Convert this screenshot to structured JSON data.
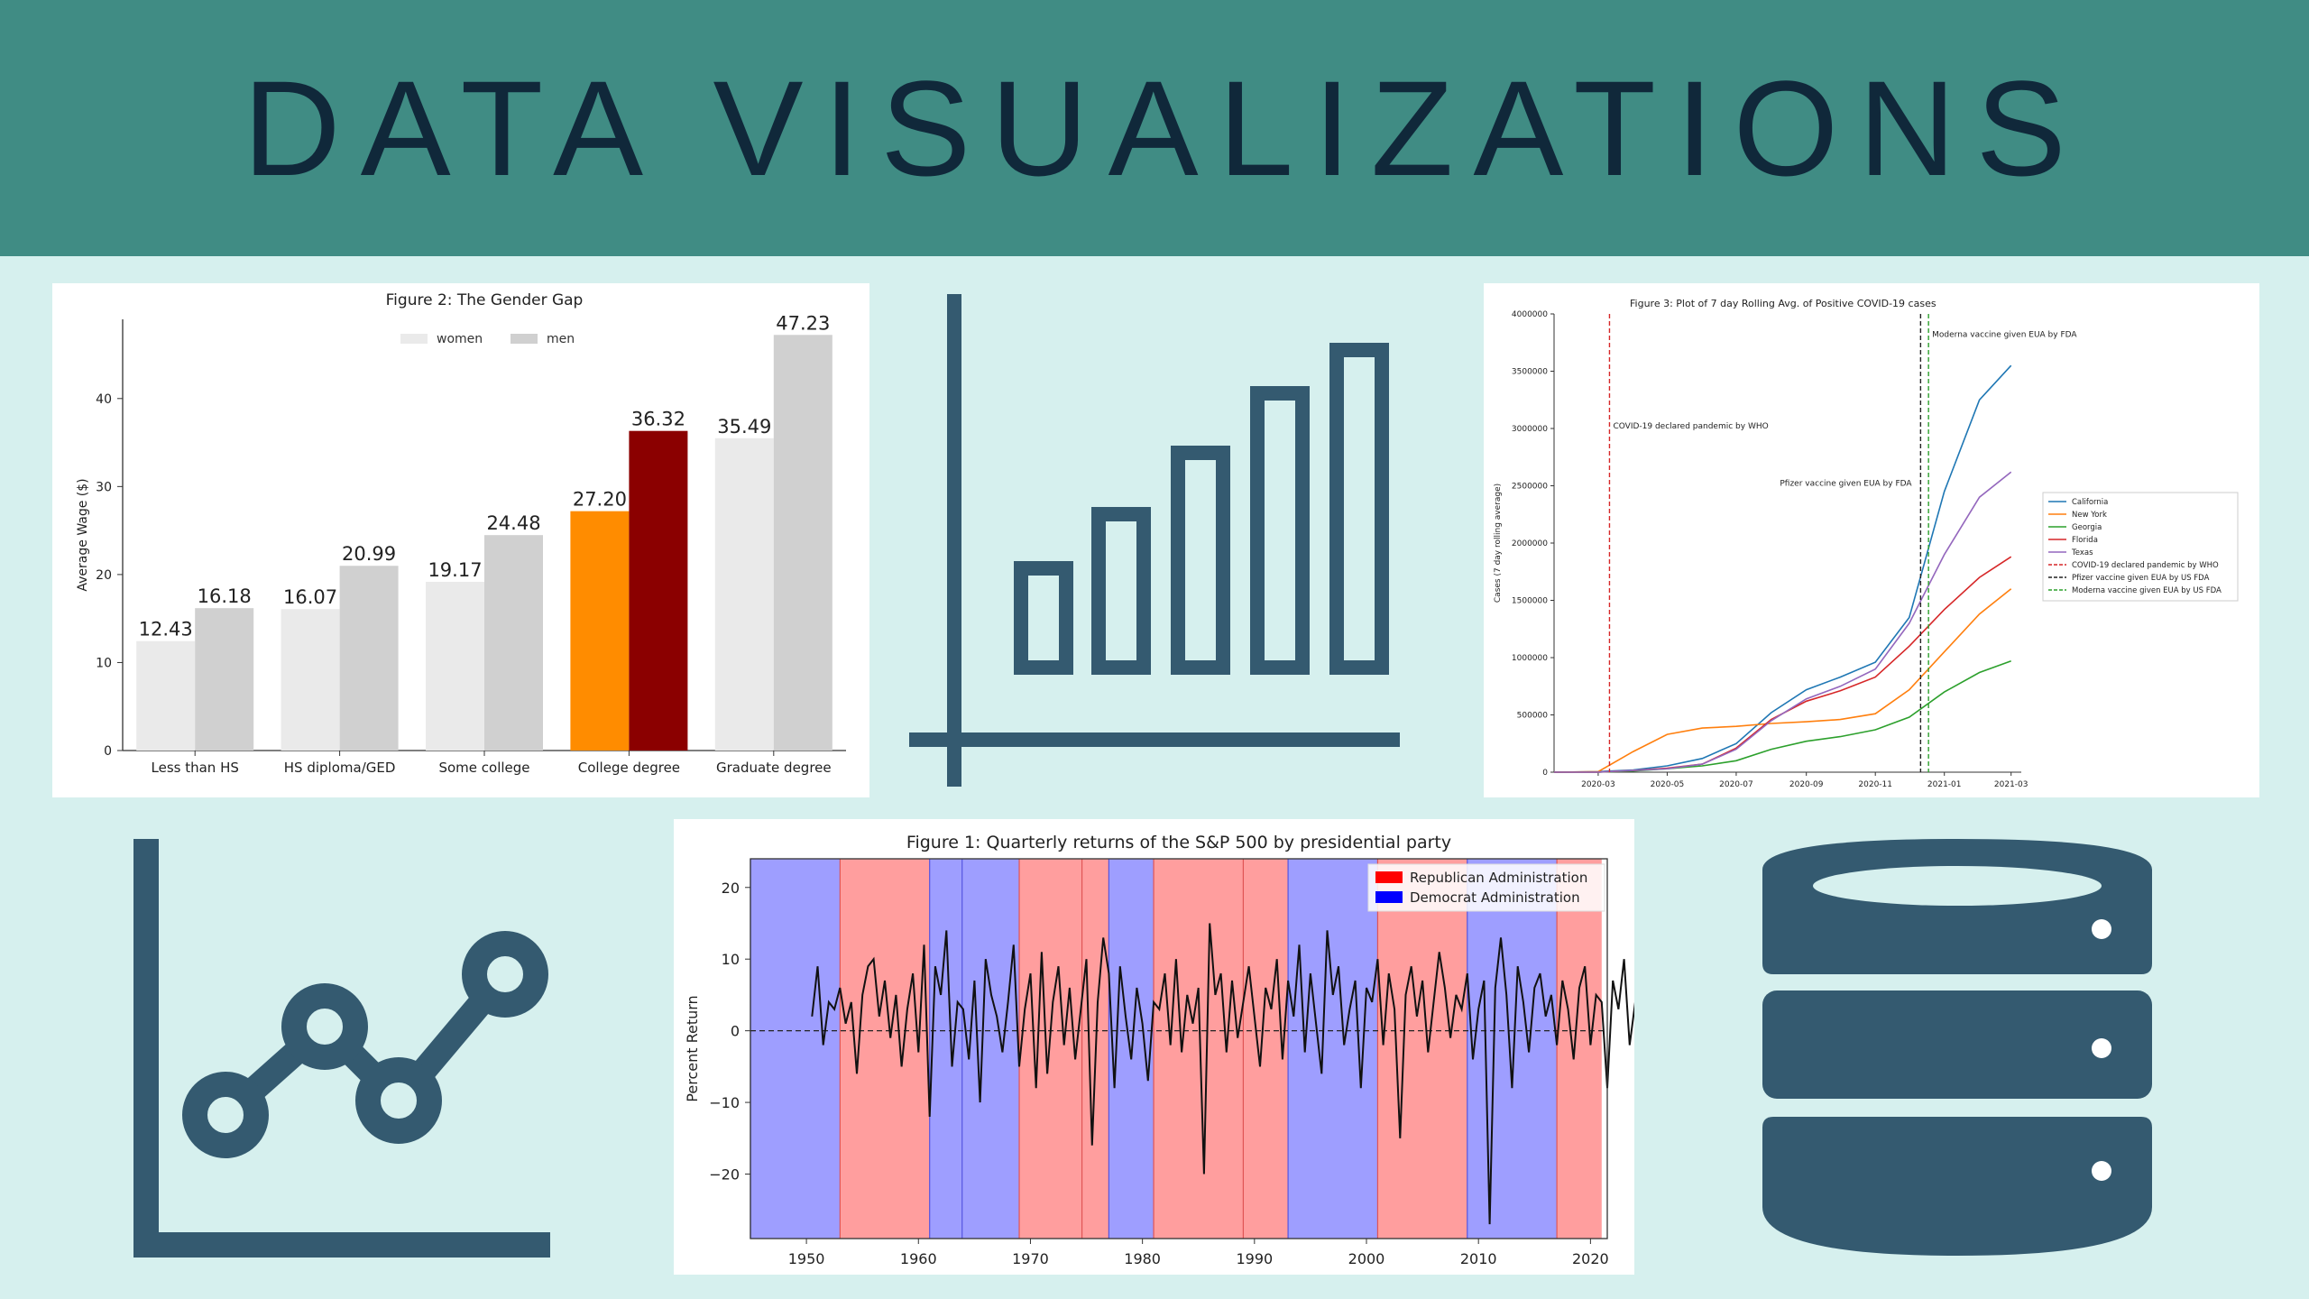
{
  "banner": {
    "title": "DATA VISUALIZATIONS"
  },
  "icons": {
    "bar_chart": "bar-chart-icon",
    "line_chart": "line-chart-icon",
    "database": "database-icon",
    "color": "#345a70"
  },
  "chart_data": [
    {
      "id": "gender_gap",
      "type": "bar",
      "title": "Figure 2: The Gender Gap",
      "ylabel": "Average Wage ($)",
      "xlabel": "",
      "ylim": [
        0,
        49
      ],
      "yticks": [
        0,
        10,
        20,
        30,
        40
      ],
      "legend_position": "top-center",
      "categories": [
        "Less than HS",
        "HS diploma/GED",
        "Some college",
        "College degree",
        "Graduate degree"
      ],
      "series": [
        {
          "name": "women",
          "values": [
            12.43,
            16.07,
            19.17,
            27.2,
            35.49
          ],
          "labels": [
            "12.43",
            "16.07",
            "19.17",
            "27.20",
            "35.49"
          ],
          "color": "#eaeaea",
          "highlight": {
            "index": 3,
            "color": "#ff8c00"
          }
        },
        {
          "name": "men",
          "values": [
            16.18,
            20.99,
            24.48,
            36.32,
            47.23
          ],
          "labels": [
            "16.18",
            "20.99",
            "24.48",
            "36.32",
            "47.23"
          ],
          "color": "#d0d0d0",
          "highlight": {
            "index": 3,
            "color": "#8b0000"
          }
        }
      ]
    },
    {
      "id": "covid_cases",
      "type": "line",
      "title": "Figure 3: Plot of 7 day Rolling Avg. of Positive COVID-19 cases",
      "ylabel": "Cases (7 day rolling average)",
      "xlabel": "",
      "x_range": [
        "2020-01-22",
        "2021-03-10"
      ],
      "ylim": [
        0,
        4000000
      ],
      "yticks": [
        0,
        500000,
        1000000,
        1500000,
        2000000,
        2500000,
        3000000,
        3500000,
        4000000
      ],
      "xticks": [
        "2020-03",
        "2020-05",
        "2020-07",
        "2020-09",
        "2020-11",
        "2021-01",
        "2021-03"
      ],
      "legend_position": "center-right",
      "x": [
        "2020-01-22",
        "2020-03-01",
        "2020-04-01",
        "2020-05-01",
        "2020-06-01",
        "2020-07-01",
        "2020-08-01",
        "2020-09-01",
        "2020-10-01",
        "2020-11-01",
        "2020-12-01",
        "2021-01-01",
        "2021-02-01",
        "2021-03-01"
      ],
      "series": [
        {
          "name": "California",
          "color": "#1f77b4",
          "values": [
            0,
            5000,
            20000,
            55000,
            120000,
            250000,
            520000,
            720000,
            830000,
            960000,
            1350000,
            2450000,
            3250000,
            3550000
          ]
        },
        {
          "name": "New York",
          "color": "#ff7f0e",
          "values": [
            0,
            5000,
            180000,
            330000,
            385000,
            400000,
            425000,
            440000,
            460000,
            510000,
            720000,
            1050000,
            1380000,
            1600000
          ]
        },
        {
          "name": "Georgia",
          "color": "#2ca02c",
          "values": [
            0,
            1000,
            10000,
            30000,
            55000,
            100000,
            200000,
            270000,
            310000,
            370000,
            480000,
            700000,
            870000,
            970000
          ]
        },
        {
          "name": "Florida",
          "color": "#d62728",
          "values": [
            0,
            1000,
            15000,
            35000,
            70000,
            210000,
            460000,
            620000,
            710000,
            830000,
            1100000,
            1420000,
            1700000,
            1880000
          ]
        },
        {
          "name": "Texas",
          "color": "#9467bd",
          "values": [
            0,
            1000,
            15000,
            30000,
            70000,
            200000,
            450000,
            640000,
            750000,
            900000,
            1300000,
            1900000,
            2400000,
            2620000
          ]
        }
      ],
      "events": [
        {
          "name": "COVID-19 declared pandemic by WHO",
          "date": "2020-03-11",
          "color": "#d62728"
        },
        {
          "name": "Pfizer vaccine given EUA by US FDA",
          "label": "Pfizer vaccine given EUA by FDA",
          "date": "2020-12-11",
          "color": "#222222"
        },
        {
          "name": "Moderna vaccine given EUA by US FDA",
          "label": "Moderna vaccine given EUA by FDA",
          "date": "2020-12-18",
          "color": "#2ca02c"
        }
      ]
    },
    {
      "id": "sp500",
      "type": "line",
      "title": "Figure 1: Quarterly returns of the S&P 500 by presidential party",
      "ylabel": "Percent Return",
      "xlabel": "",
      "xlim": [
        1945,
        2021.5
      ],
      "ylim": [
        -29,
        24
      ],
      "yticks": [
        -20,
        -10,
        0,
        10,
        20
      ],
      "xticks": [
        1950,
        1960,
        1970,
        1980,
        1990,
        2000,
        2010,
        2020
      ],
      "legend_position": "top-right",
      "legend": [
        {
          "name": "Republican Administration",
          "color": "#ff0000"
        },
        {
          "name": "Democrat Administration",
          "color": "#0000ff"
        }
      ],
      "administrations": [
        {
          "start": 1945,
          "end": 1953,
          "party": "D"
        },
        {
          "start": 1953,
          "end": 1961,
          "party": "R"
        },
        {
          "start": 1961,
          "end": 1963.9,
          "party": "D"
        },
        {
          "start": 1963.9,
          "end": 1969,
          "party": "D"
        },
        {
          "start": 1969,
          "end": 1974.6,
          "party": "R"
        },
        {
          "start": 1974.6,
          "end": 1977,
          "party": "R"
        },
        {
          "start": 1977,
          "end": 1981,
          "party": "D"
        },
        {
          "start": 1981,
          "end": 1989,
          "party": "R"
        },
        {
          "start": 1989,
          "end": 1993,
          "party": "R"
        },
        {
          "start": 1993,
          "end": 2001,
          "party": "D"
        },
        {
          "start": 2001,
          "end": 2009,
          "party": "R"
        },
        {
          "start": 2009,
          "end": 2017,
          "party": "D"
        },
        {
          "start": 2017,
          "end": 2021,
          "party": "R"
        }
      ],
      "x_start": 1950.5,
      "x_step": 0.5,
      "values": [
        2,
        9,
        -2,
        4,
        3,
        6,
        1,
        4,
        -6,
        5,
        9,
        10,
        2,
        7,
        -1,
        5,
        -5,
        3,
        8,
        -3,
        12,
        -12,
        9,
        5,
        14,
        -5,
        4,
        3,
        -4,
        7,
        -10,
        10,
        5,
        2,
        -3,
        4,
        12,
        -5,
        3,
        8,
        -8,
        11,
        -6,
        4,
        9,
        -2,
        6,
        -4,
        3,
        10,
        -16,
        4,
        13,
        8,
        -8,
        9,
        2,
        -4,
        6,
        1,
        -7,
        4,
        3,
        8,
        -2,
        10,
        -3,
        5,
        1,
        6,
        -20,
        15,
        5,
        8,
        -3,
        7,
        -1,
        4,
        9,
        2,
        -5,
        6,
        3,
        10,
        -4,
        7,
        2,
        12,
        -3,
        8,
        1,
        -6,
        14,
        5,
        9,
        -2,
        3,
        7,
        -8,
        6,
        4,
        10,
        -2,
        8,
        3,
        -15,
        5,
        9,
        2,
        7,
        -3,
        4,
        11,
        6,
        -1,
        5,
        3,
        8,
        -4,
        3,
        7,
        -27,
        6,
        13,
        5,
        -8,
        9,
        4,
        -3,
        6,
        8,
        2,
        5,
        -2,
        7,
        3,
        -4,
        6,
        9,
        -2,
        5,
        4,
        -8,
        7,
        3,
        10,
        -2,
        4,
        -6,
        8,
        13,
        7
      ]
    }
  ]
}
